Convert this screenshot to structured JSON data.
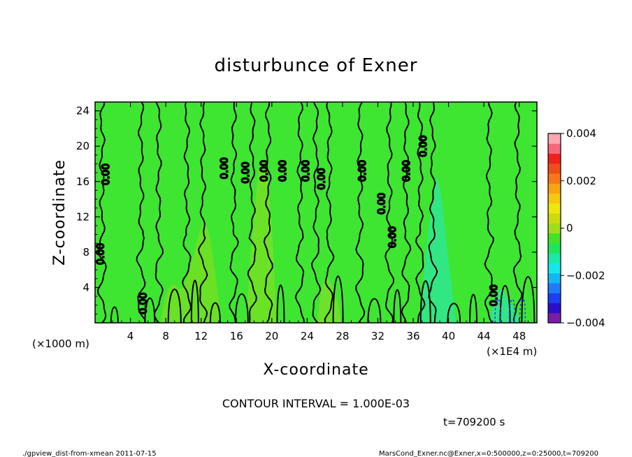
{
  "chart_data": {
    "type": "heatmap",
    "title": "disturbunce of Exner",
    "xlabel": "X-coordinate",
    "ylabel": "Z-coordinate",
    "x_unit_left": "(×1000 m)",
    "x_unit_right": "(×1E4 m)",
    "xlim": [
      0,
      50
    ],
    "ylim": [
      0,
      25
    ],
    "x_ticks": [
      4,
      8,
      12,
      16,
      20,
      24,
      28,
      32,
      36,
      40,
      44,
      48
    ],
    "y_ticks": [
      4,
      8,
      12,
      16,
      20,
      24
    ],
    "colorbar": {
      "min": -0.004,
      "max": 0.004,
      "tick_values": [
        0.004,
        0.002,
        0,
        -0.002,
        -0.004
      ],
      "tick_labels": [
        "0.004",
        "0.002",
        "0",
        "−0.002",
        "−0.004"
      ],
      "colors": [
        "#7a1fa2",
        "#2a10c8",
        "#1c40f0",
        "#1f7cf6",
        "#14b6f2",
        "#16e8e8",
        "#1ce8a8",
        "#20e45a",
        "#44e02a",
        "#9ede1c",
        "#ccda10",
        "#ece80c",
        "#f6c812",
        "#f6a414",
        "#f67818",
        "#ee4e1a",
        "#f0221c",
        "#f46a7a",
        "#fba8ae"
      ]
    },
    "contour_interval": "CONTOUR INTERVAL = 1.000E-03",
    "contour_label": "0.00",
    "contour_label_count": 15,
    "contour_x_positions": [
      0.8,
      5.2,
      7.2,
      10.4,
      12.2,
      15.7,
      17.8,
      19.6,
      23.2,
      25.0,
      26.5,
      30.0,
      33.3,
      35.2,
      36.8,
      38.2,
      44.6,
      47.8
    ],
    "contour_count": 18,
    "background_value": 0,
    "time": "t=709200 s"
  },
  "footer": {
    "left": "./gpview_dist-from-xmean  2011-07-15",
    "right": "MarsCond_Exner.nc@Exner,x=0:500000,z=0:25000,t=709200"
  }
}
